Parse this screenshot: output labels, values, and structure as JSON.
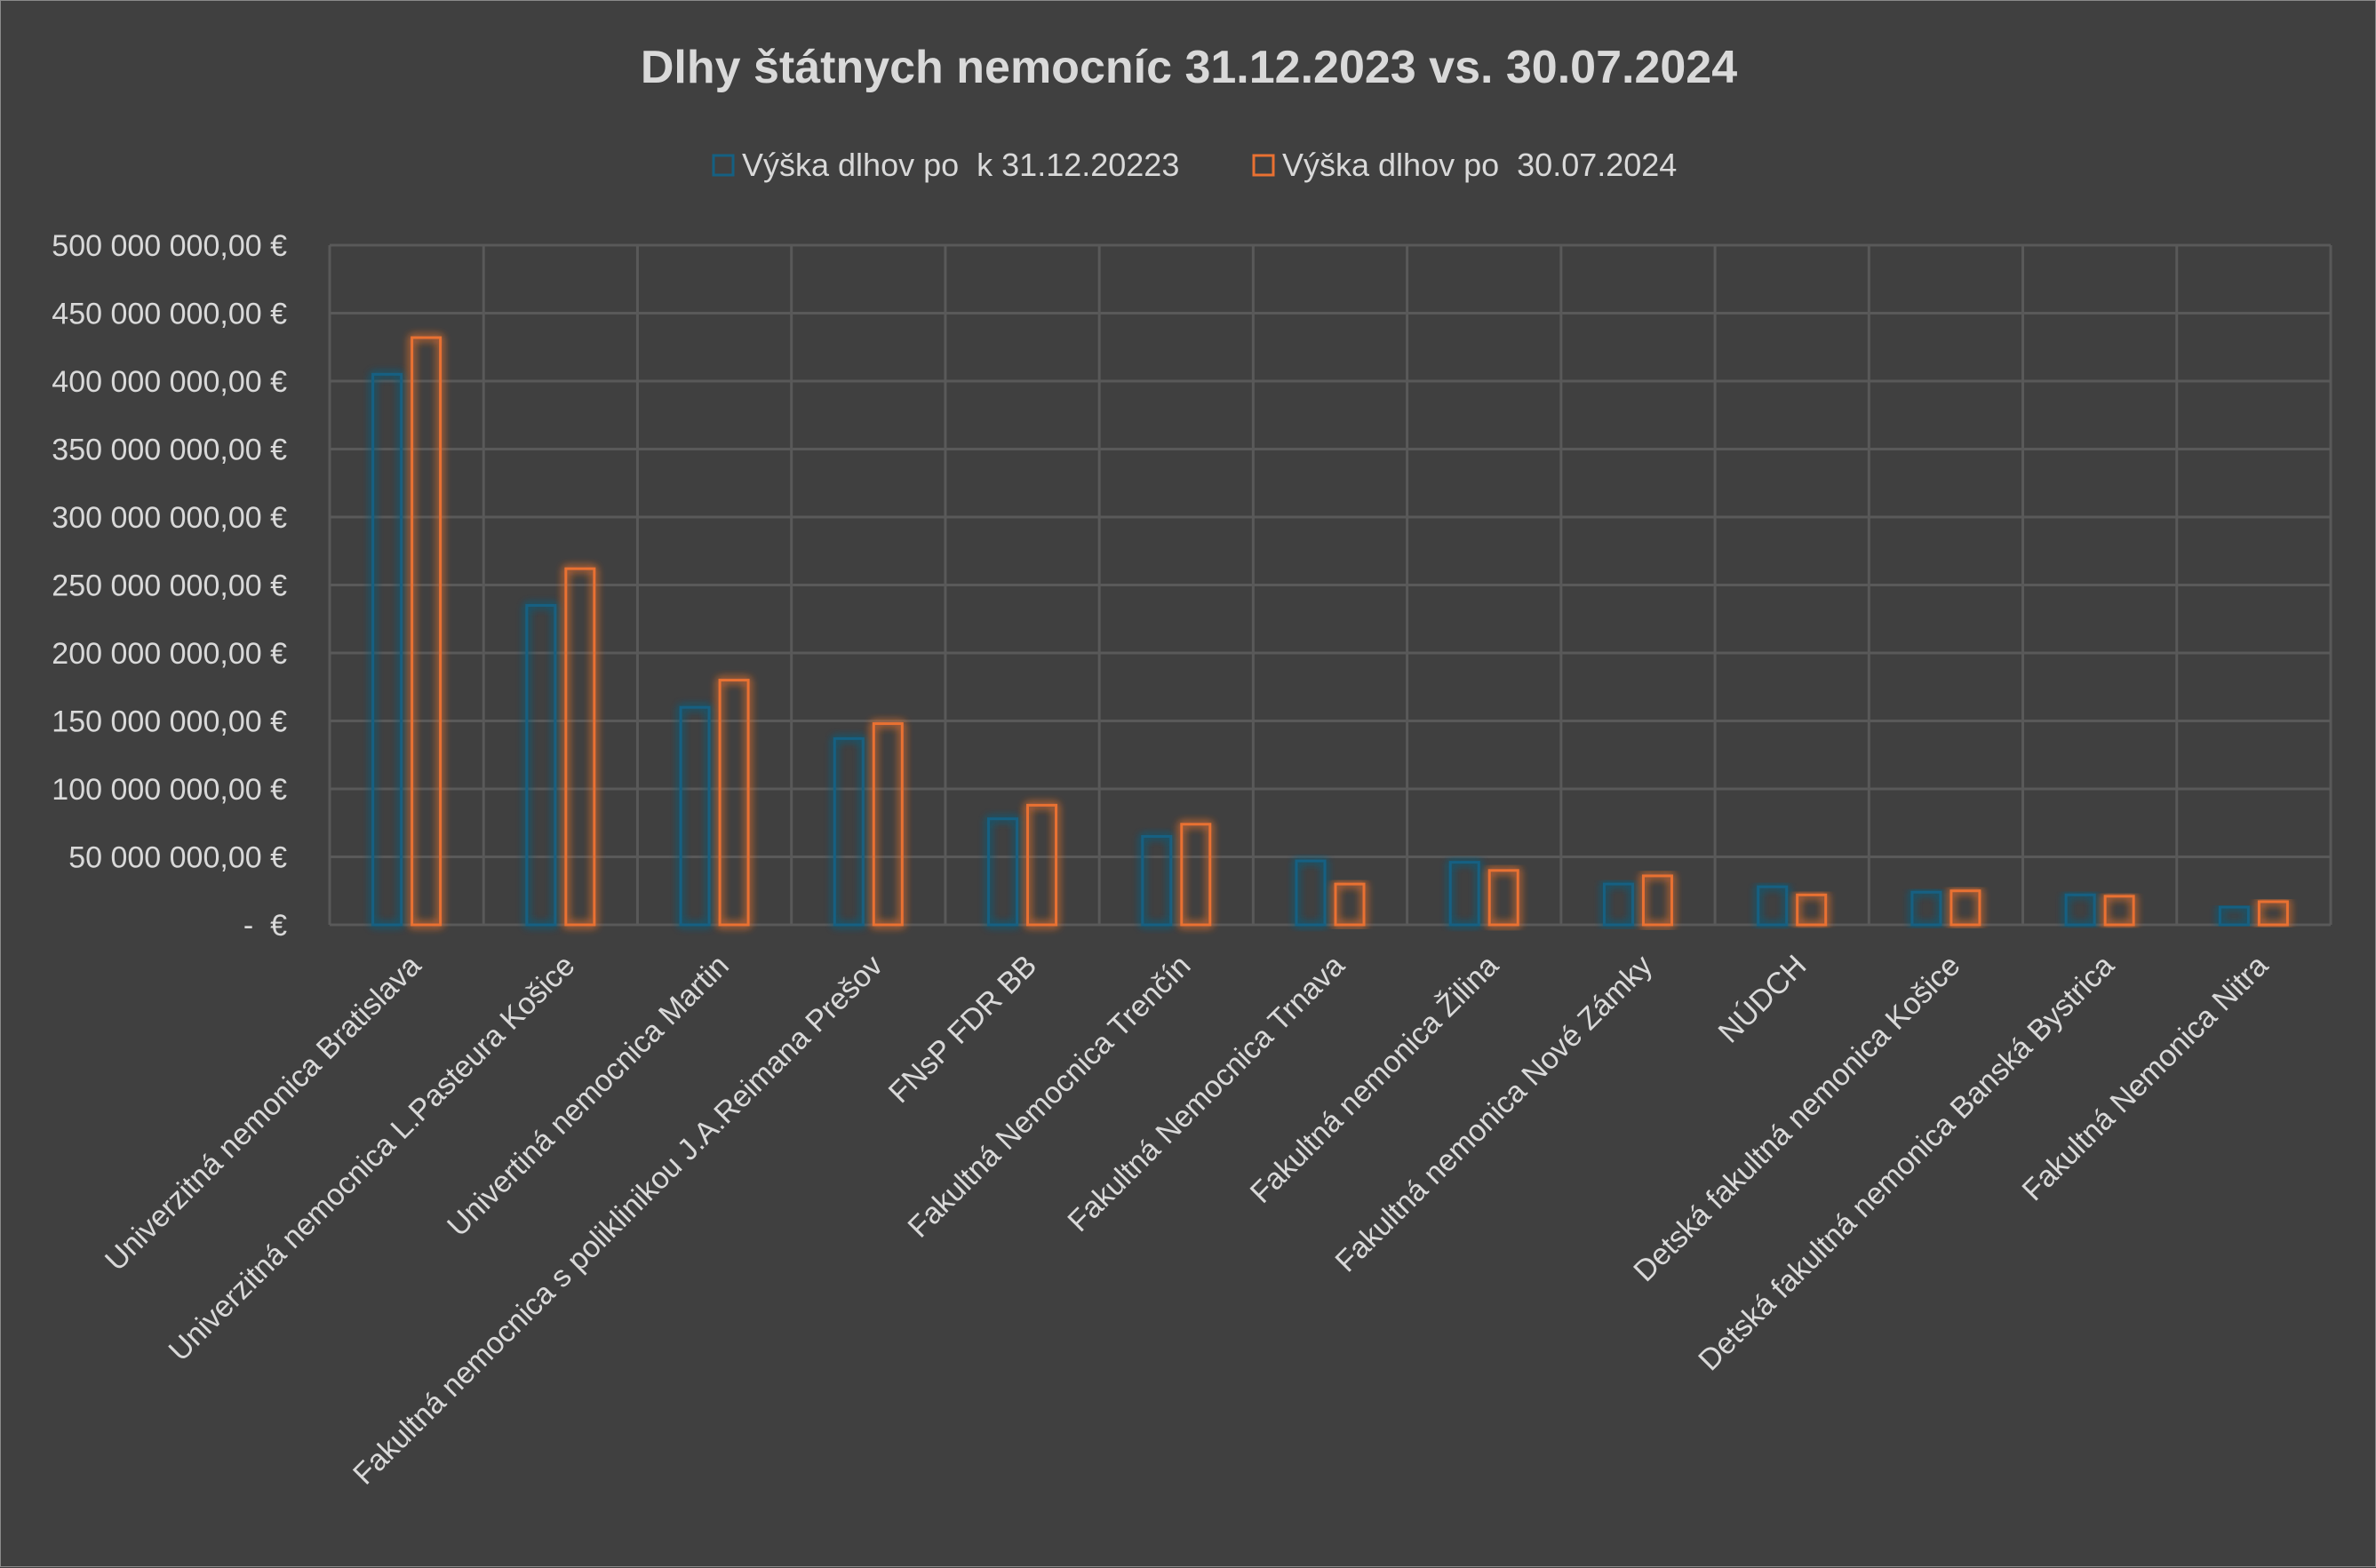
{
  "chart_data": {
    "type": "bar",
    "title": "Dlhy štátnych nemocníc 31.12.2023 vs. 30.07.2024",
    "xlabel": "",
    "ylabel": "",
    "ylim": [
      0,
      500000000
    ],
    "yticks": [
      0,
      50000000,
      100000000,
      150000000,
      200000000,
      250000000,
      300000000,
      350000000,
      400000000,
      450000000,
      500000000
    ],
    "ytick_labels": [
      "-  €",
      "50 000 000,00 €",
      "100 000 000,00 €",
      "150 000 000,00 €",
      "200 000 000,00 €",
      "250 000 000,00 €",
      "300 000 000,00 €",
      "350 000 000,00 €",
      "400 000 000,00 €",
      "450 000 000,00 €",
      "500 000 000,00 €"
    ],
    "grid": true,
    "legend": "top",
    "categories": [
      "Univerzitná nemonica Bratislava",
      "Univerzitná nemocnica L.Pasteura Košice",
      "Univertiná nemocnica Martin",
      "Fakultná nemocnica s poliklinikou J.A.Reimana Prešov",
      "FNsP FDR BB",
      "Fakultná Nemocnica Trenčín",
      "Fakultná Nemocnica Trnava",
      "Fakultná nemonica Žilina",
      "Fakultná nemonica Nové Zámky",
      "NÚDCH",
      "Detská fakultná nemonica Košice",
      "Detská fakultná nemonica Banská Bystrica",
      "Fakultná Nemonica Nitra"
    ],
    "series": [
      {
        "name": "Výška dlhov po  k 31.12.20223",
        "color": "#156082",
        "values": [
          405000000,
          235000000,
          160000000,
          137000000,
          78000000,
          65000000,
          47000000,
          46000000,
          30000000,
          28000000,
          24000000,
          22000000,
          13000000
        ]
      },
      {
        "name": "Výška dlhov po  30.07.2024",
        "color": "#e97132",
        "values": [
          432000000,
          262000000,
          180000000,
          148000000,
          88000000,
          74000000,
          30000000,
          40000000,
          36000000,
          22000000,
          25000000,
          21000000,
          17000000
        ]
      }
    ]
  }
}
